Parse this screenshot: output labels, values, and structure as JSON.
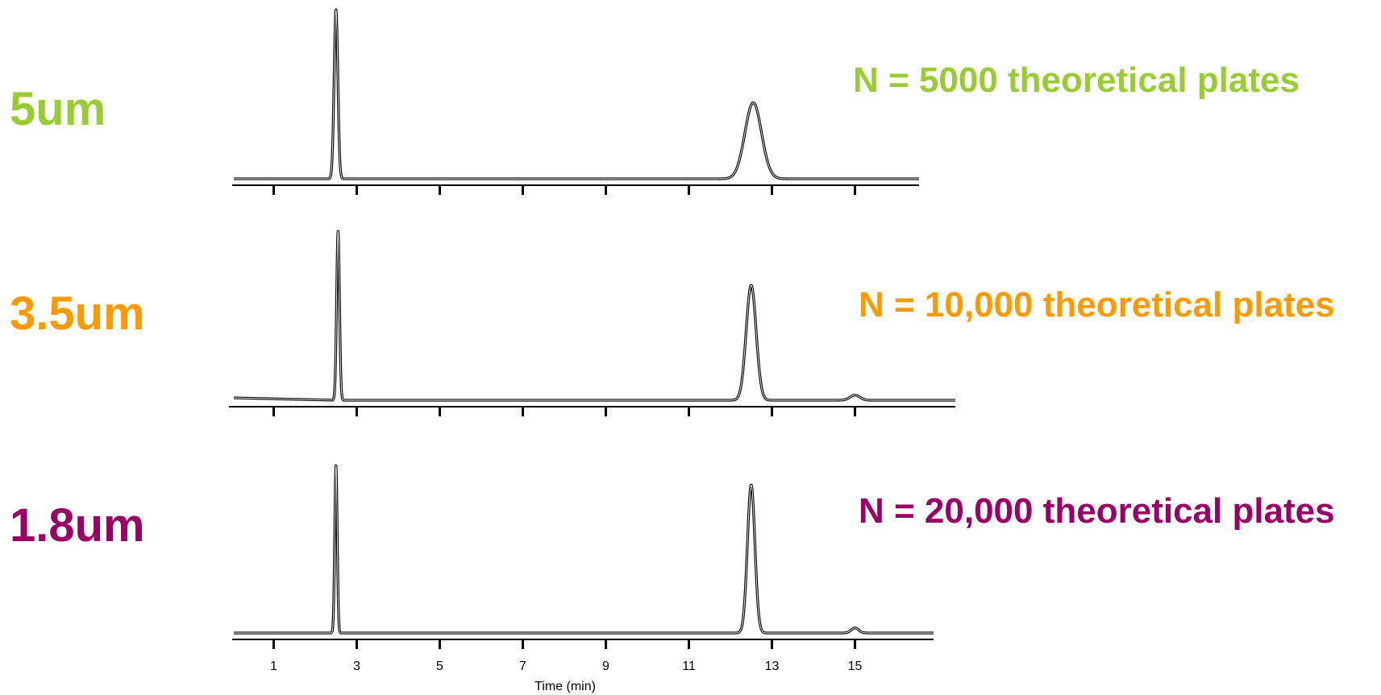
{
  "chart_data": {
    "type": "line",
    "x_axis": {
      "label": "Time (min)",
      "ticks": [
        1,
        3,
        5,
        7,
        9,
        11,
        13,
        15
      ],
      "range": [
        0,
        16.7
      ]
    },
    "panels": [
      {
        "particle_size": "5um",
        "plates": "N = 5000 theoretical plates",
        "color": "#99CC33",
        "peaks": [
          {
            "t": 2.5,
            "height": 1.0,
            "sigma": 0.045
          },
          {
            "t": 12.55,
            "height": 0.45,
            "sigma": 0.2
          }
        ]
      },
      {
        "particle_size": "3.5um",
        "plates": "N = 10,000 theoretical plates",
        "color": "#FF9900",
        "peaks": [
          {
            "t": 2.55,
            "height": 1.0,
            "sigma": 0.035
          },
          {
            "t": 12.5,
            "height": 0.68,
            "sigma": 0.12
          },
          {
            "t": 15.0,
            "height": 0.03,
            "sigma": 0.12
          }
        ]
      },
      {
        "particle_size": "1.8um",
        "plates": "N = 20,000 theoretical plates",
        "color": "#990066",
        "peaks": [
          {
            "t": 2.5,
            "height": 1.0,
            "sigma": 0.03
          },
          {
            "t": 12.5,
            "height": 0.88,
            "sigma": 0.09
          },
          {
            "t": 15.0,
            "height": 0.03,
            "sigma": 0.09
          }
        ]
      }
    ]
  }
}
